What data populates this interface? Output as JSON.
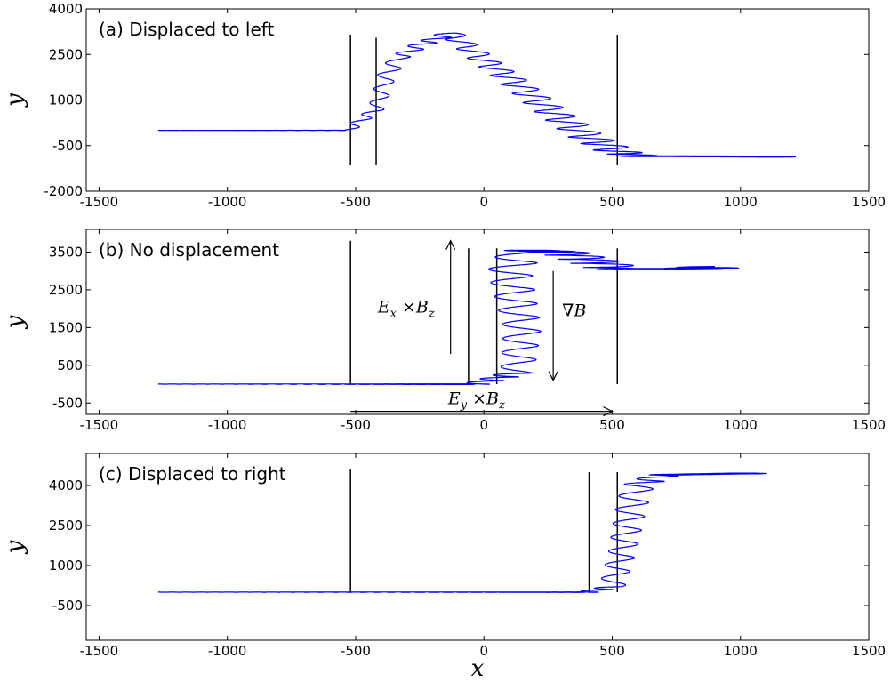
{
  "colors": {
    "trajectory": "#0000ee",
    "boundary": "#000000",
    "frame": "#000000"
  },
  "chart_data": [
    {
      "type": "line",
      "title": "(a) Displaced to left",
      "xlabel": "",
      "ylabel": "y",
      "xlim": [
        -1550,
        1500
      ],
      "ylim": [
        -2000,
        4000
      ],
      "xticks": [
        -1500,
        -1000,
        -500,
        0,
        500,
        1000,
        1500
      ],
      "xtick_labels": [
        "-1500",
        "-1000",
        "-500",
        "0",
        "500",
        "1000",
        "1500"
      ],
      "yticks": [
        -2000,
        -500,
        1000,
        2500,
        4000
      ],
      "ytick_labels": [
        "-2000",
        "-500",
        "1000",
        "2500",
        "4000"
      ],
      "boundaries": [
        {
          "x": -520,
          "y": [
            -1150,
            3150
          ]
        },
        {
          "x": -420,
          "y": [
            -1150,
            3050
          ]
        },
        {
          "x": 520,
          "y": [
            -1150,
            3150
          ]
        }
      ],
      "trajectory": {
        "guiding_center": [
          [
            -1270,
            0
          ],
          [
            -530,
            0
          ],
          [
            -420,
            700
          ],
          [
            -400,
            1200
          ],
          [
            -380,
            1800
          ],
          [
            -330,
            2400
          ],
          [
            -250,
            2800
          ],
          [
            -130,
            3200
          ],
          [
            0,
            2300
          ],
          [
            100,
            1700
          ],
          [
            250,
            700
          ],
          [
            400,
            -200
          ],
          [
            520,
            -700
          ],
          [
            600,
            -850
          ],
          [
            1000,
            -860
          ],
          [
            1150,
            -870
          ]
        ],
        "final_loop_radius": [
          110,
          30
        ]
      },
      "annotations": []
    },
    {
      "type": "line",
      "title": "(b) No displacement",
      "xlabel": "",
      "ylabel": "y",
      "xlim": [
        -1550,
        1500
      ],
      "ylim": [
        -800,
        4100
      ],
      "xticks": [
        -1500,
        -1000,
        -500,
        0,
        500,
        1000,
        1500
      ],
      "xtick_labels": [
        "-1500",
        "-1000",
        "-500",
        "0",
        "500",
        "1000",
        "1500"
      ],
      "yticks": [
        -500,
        500,
        1500,
        2500,
        3500
      ],
      "ytick_labels": [
        "-500",
        "500",
        "1500",
        "2500",
        "3500"
      ],
      "boundaries": [
        {
          "x": -520,
          "y": [
            0,
            3800
          ]
        },
        {
          "x": -60,
          "y": [
            0,
            3600
          ]
        },
        {
          "x": 50,
          "y": [
            0,
            3600
          ]
        },
        {
          "x": 520,
          "y": [
            0,
            3600
          ]
        }
      ],
      "trajectory": {
        "guiding_center": [
          [
            -1270,
            0
          ],
          [
            -30,
            0
          ],
          [
            130,
            300
          ],
          [
            150,
            1500
          ],
          [
            100,
            3000
          ],
          [
            150,
            3550
          ],
          [
            300,
            3500
          ],
          [
            520,
            3050
          ],
          [
            800,
            3050
          ],
          [
            900,
            3100
          ]
        ],
        "final_loop_radius": [
          135,
          40
        ]
      },
      "annotations": [
        {
          "text": "E",
          "sub": "x",
          "mid": " ×B",
          "sub2": "z",
          "arrow": "up",
          "x": -130,
          "y": [
            800,
            3800
          ]
        },
        {
          "text": "∇B",
          "arrow": "down",
          "x": 270,
          "y": [
            3000,
            100
          ]
        },
        {
          "text": "E",
          "sub": "y",
          "mid": " ×B",
          "sub2": "z",
          "arrow": "right",
          "x": [
            -520,
            500
          ],
          "y": -720
        }
      ]
    },
    {
      "type": "line",
      "title": "(c) Displaced to right",
      "xlabel": "x",
      "ylabel": "y",
      "xlim": [
        -1550,
        1500
      ],
      "ylim": [
        -1800,
        5200
      ],
      "xticks": [
        -1500,
        -1000,
        -500,
        0,
        500,
        1000,
        1500
      ],
      "xtick_labels": [
        "-1500",
        "-1000",
        "-500",
        "0",
        "500",
        "1000",
        "1500"
      ],
      "yticks": [
        -500,
        1000,
        2500,
        4000
      ],
      "ytick_labels": [
        "-500",
        "1000",
        "2500",
        "4000"
      ],
      "boundaries": [
        {
          "x": -520,
          "y": [
            0,
            4600
          ]
        },
        {
          "x": 410,
          "y": [
            0,
            4500
          ]
        },
        {
          "x": 520,
          "y": [
            0,
            4500
          ]
        }
      ],
      "trajectory": {
        "guiding_center": [
          [
            -1270,
            0
          ],
          [
            410,
            0
          ],
          [
            500,
            200
          ],
          [
            540,
            1500
          ],
          [
            570,
            3000
          ],
          [
            600,
            4000
          ],
          [
            700,
            4400
          ],
          [
            1000,
            4450
          ],
          [
            1060,
            4450
          ]
        ],
        "final_loop_radius": [
          80,
          30
        ]
      },
      "annotations": []
    }
  ]
}
